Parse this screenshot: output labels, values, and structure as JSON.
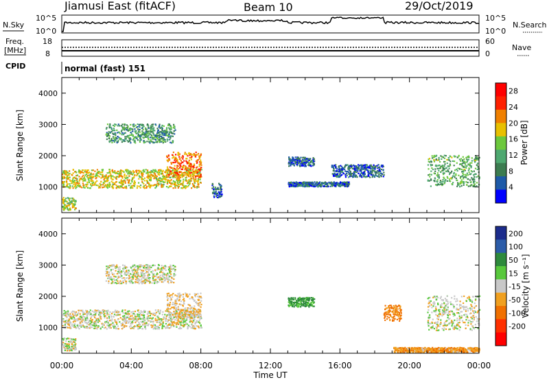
{
  "header": {
    "station": "Jiamusi East (fitACF)",
    "beam": "Beam 10",
    "date": "29/Oct/2019"
  },
  "noise_panel": {
    "left_label": "N.Sky",
    "right_label": "N.Search",
    "ticks_left": [
      "10^5",
      "10^0"
    ],
    "ticks_right": [
      "10^5",
      "10^0"
    ]
  },
  "freq_panel": {
    "left_label_lines": [
      "Freq.",
      "[MHz]"
    ],
    "left_ticks": [
      "18",
      "8"
    ],
    "right_label": "Nave",
    "right_ticks": [
      "60",
      "0"
    ]
  },
  "cpid": {
    "label": "CPID",
    "value": "normal (fast) 151"
  },
  "x_axis": {
    "title": "Time UT",
    "tick_labels": [
      "00:00",
      "04:00",
      "08:00",
      "12:00",
      "16:00",
      "20:00",
      "00:00"
    ]
  },
  "colors": {
    "power_scale": [
      "#0000ff",
      "#1e5aa8",
      "#3c7c50",
      "#4ea870",
      "#6cc83c",
      "#e8c000",
      "#f08000",
      "#ff2000",
      "#ff0000"
    ],
    "velocity_scale": [
      "#1c2c8c",
      "#2c5ca8",
      "#2e8a3c",
      "#58c83c",
      "#c8c8c8",
      "#f0a020",
      "#f07000",
      "#ff3000",
      "#ff0000"
    ]
  },
  "chart_data": [
    {
      "type": "heatmap",
      "name": "power",
      "ylabel": "Slant Range [km]",
      "xlabel": "",
      "x_ticks": [
        "00:00",
        "04:00",
        "08:00",
        "12:00",
        "16:00",
        "20:00",
        "00:00"
      ],
      "y_ticks": [
        1000,
        2000,
        3000,
        4000
      ],
      "ylim": [
        180,
        4500
      ],
      "colorbar": {
        "label": "Power [dB]",
        "ticks": [
          4,
          8,
          12,
          16,
          20,
          24,
          28
        ],
        "range": [
          0,
          30
        ]
      },
      "echo_regions": [
        {
          "t0": 0.0,
          "t1": 8.0,
          "r0": 950,
          "r1": 1550,
          "power": 18
        },
        {
          "t0": 6.0,
          "t1": 8.0,
          "r0": 1300,
          "r1": 2100,
          "power": 22
        },
        {
          "t0": 2.5,
          "t1": 6.5,
          "r0": 2400,
          "r1": 3000,
          "power": 10
        },
        {
          "t0": 0.0,
          "t1": 0.8,
          "r0": 250,
          "r1": 650,
          "power": 16
        },
        {
          "t0": 8.6,
          "t1": 9.2,
          "r0": 650,
          "r1": 1100,
          "power": 6
        },
        {
          "t0": 13.0,
          "t1": 14.5,
          "r0": 1650,
          "r1": 1950,
          "power": 6
        },
        {
          "t0": 15.5,
          "t1": 18.5,
          "r0": 1300,
          "r1": 1700,
          "power": 6
        },
        {
          "t0": 13.0,
          "t1": 16.5,
          "r0": 1000,
          "r1": 1150,
          "power": 6
        },
        {
          "t0": 21.0,
          "t1": 24.0,
          "r0": 1000,
          "r1": 2000,
          "power": 12
        }
      ]
    },
    {
      "type": "heatmap",
      "name": "velocity",
      "ylabel": "Slant Range [km]",
      "xlabel": "Time UT",
      "x_ticks": [
        "00:00",
        "04:00",
        "08:00",
        "12:00",
        "16:00",
        "20:00",
        "00:00"
      ],
      "y_ticks": [
        1000,
        2000,
        3000,
        4000
      ],
      "ylim": [
        180,
        4500
      ],
      "colorbar": {
        "label": "Velocity [m s⁻¹]",
        "ticks": [
          200,
          100,
          50,
          15,
          -15,
          -50,
          -100,
          -200
        ],
        "range": [
          -250,
          250
        ]
      },
      "echo_regions": [
        {
          "t0": 0.0,
          "t1": 8.0,
          "r0": 950,
          "r1": 1550,
          "velocity": 0
        },
        {
          "t0": 6.0,
          "t1": 8.0,
          "r0": 1300,
          "r1": 2100,
          "velocity": -20
        },
        {
          "t0": 2.5,
          "t1": 6.5,
          "r0": 2400,
          "r1": 3000,
          "velocity": 0
        },
        {
          "t0": 0.0,
          "t1": 0.8,
          "r0": 250,
          "r1": 650,
          "velocity": 0
        },
        {
          "t0": 13.0,
          "t1": 14.5,
          "r0": 1650,
          "r1": 1950,
          "velocity": 60
        },
        {
          "t0": 18.5,
          "t1": 19.5,
          "r0": 1200,
          "r1": 1700,
          "velocity": -60
        },
        {
          "t0": 21.0,
          "t1": 24.0,
          "r0": 900,
          "r1": 2000,
          "velocity": 0
        },
        {
          "t0": 19.0,
          "t1": 24.0,
          "r0": 200,
          "r1": 350,
          "velocity": -40
        }
      ]
    }
  ]
}
